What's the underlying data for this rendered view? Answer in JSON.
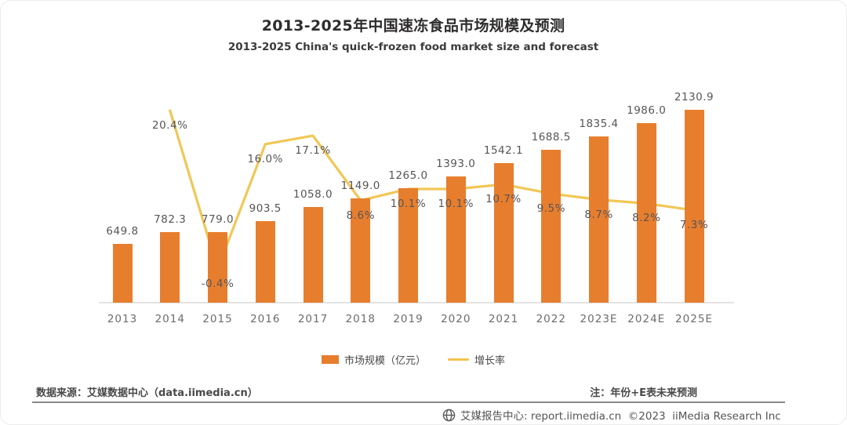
{
  "header": {
    "title": "2013-2025年中国速冻食品市场规模及预测",
    "subtitle": "2013-2025 China's quick-frozen food market size and forecast"
  },
  "chart_data": {
    "type": "bar",
    "categories": [
      "2013",
      "2014",
      "2015",
      "2016",
      "2017",
      "2018",
      "2019",
      "2020",
      "2021",
      "2022",
      "2023E",
      "2024E",
      "2025E"
    ],
    "series": [
      {
        "name": "市场规模（亿元）",
        "type": "bar",
        "color": "#E77E2E",
        "values": [
          649.8,
          782.3,
          779.0,
          903.5,
          1058.0,
          1149.0,
          1265.0,
          1393.0,
          1542.1,
          1688.5,
          1835.4,
          1986.0,
          2130.9
        ]
      },
      {
        "name": "增长率",
        "type": "line",
        "color": "#F0C44D",
        "unit": "%",
        "values": [
          null,
          20.4,
          -0.4,
          16.0,
          17.1,
          8.6,
          10.1,
          10.1,
          10.7,
          9.5,
          8.7,
          8.2,
          7.3
        ]
      }
    ],
    "title": "2013-2025年中国速冻食品市场规模及预测",
    "xlabel": "",
    "ylabel": "",
    "ylim": [
      0,
      2250
    ],
    "y2lim": [
      -5,
      25
    ],
    "grid": false,
    "legend_position": "bottom"
  },
  "legend": {
    "bar_label": "市场规模（亿元）",
    "line_label": "增长率"
  },
  "notes": {
    "source": "数据来源：艾媒数据中心（data.iimedia.cn）",
    "forecast": "注：年份+E表未来预测"
  },
  "footer": {
    "branding": "艾媒报告中心: report.iimedia.cn  ©2023  iiMedia Research Inc"
  },
  "colors": {
    "bar": "#E77E2E",
    "line": "#F0C44D",
    "data_label": "#575556",
    "axis_label": "#6D6B6B"
  }
}
